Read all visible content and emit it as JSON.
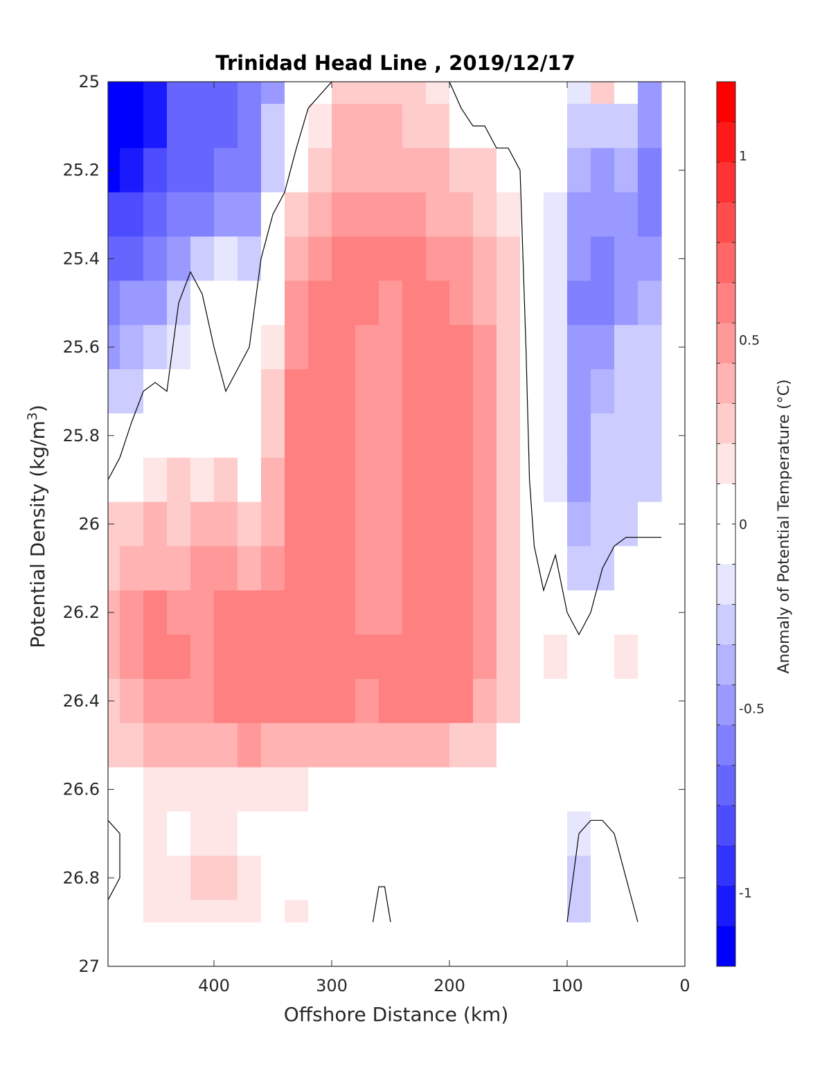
{
  "chart_data": {
    "type": "heatmap",
    "subtype": "filled-contour",
    "title": "Trinidad Head Line , 2019/12/17",
    "xlabel": "Offshore Distance (km)",
    "ylabel_main": "Potential Density (kg/m",
    "ylabel_sup": "3",
    "ylabel_close": ")",
    "colorbar_label": "Anomaly of Potential Temperature (°C)",
    "xlim": [
      490,
      0
    ],
    "x_reversed": true,
    "ylim": [
      25,
      27
    ],
    "y_reversed": true,
    "x_ticks": [
      400,
      300,
      200,
      100,
      0
    ],
    "x_tick_labels": [
      "400",
      "300",
      "200",
      "100",
      "0"
    ],
    "y_ticks": [
      25,
      25.2,
      25.4,
      25.6,
      25.8,
      26,
      26.2,
      26.4,
      26.6,
      26.8,
      27
    ],
    "y_tick_labels": [
      "25",
      "25.2",
      "25.4",
      "25.6",
      "25.8",
      "26",
      "26.2",
      "26.4",
      "26.6",
      "26.8",
      "27"
    ],
    "colorbar": {
      "range": [
        -1.2,
        1.2
      ],
      "step": 0.1,
      "ticks": [
        1,
        0.5,
        0,
        -0.5,
        -1
      ],
      "tick_labels": [
        "1",
        "0.5",
        "0",
        "-0.5",
        "-1"
      ],
      "colors_top_to_bottom": [
        "#ff0000",
        "#ff1a1a",
        "#ff3333",
        "#ff4d4d",
        "#ff6666",
        "#ff8080",
        "#ff9999",
        "#ffb3b3",
        "#ffcccc",
        "#ffe6e6",
        "#ffffff",
        "#ffffff",
        "#e6e6ff",
        "#ccccff",
        "#b3b3ff",
        "#9999ff",
        "#8080ff",
        "#6666ff",
        "#4d4dff",
        "#3333ff",
        "#1a1aff",
        "#0000ff"
      ]
    },
    "x_grid": [
      490,
      470,
      450,
      430,
      410,
      390,
      370,
      350,
      330,
      310,
      290,
      270,
      250,
      230,
      210,
      190,
      170,
      150,
      130,
      110,
      90,
      70,
      50,
      30,
      20
    ],
    "y_grid": [
      25.0,
      25.1,
      25.2,
      25.3,
      25.4,
      25.5,
      25.6,
      25.7,
      25.8,
      25.9,
      26.0,
      26.1,
      26.2,
      26.3,
      26.4,
      26.5,
      26.6,
      26.7,
      26.8,
      26.9
    ],
    "anomaly": [
      [
        -1.05,
        -1.0,
        -0.8,
        -0.6,
        -0.5,
        -0.5,
        -0.4,
        -0.3,
        0.0,
        0.15,
        0.3,
        0.35,
        0.35,
        0.3,
        0.25,
        0.15,
        0.08,
        0.05,
        0.05,
        0.0,
        -0.05,
        0.3,
        0.0,
        -0.3,
        -0.3
      ],
      [
        -1.0,
        -0.95,
        -0.8,
        -0.6,
        -0.55,
        -0.5,
        -0.45,
        -0.2,
        0.1,
        0.25,
        0.4,
        0.4,
        0.4,
        0.35,
        0.3,
        0.2,
        0.15,
        0.1,
        0.1,
        0.0,
        -0.2,
        -0.1,
        -0.1,
        -0.35,
        -0.35
      ],
      [
        -0.95,
        -0.85,
        -0.7,
        -0.55,
        -0.5,
        -0.45,
        -0.4,
        -0.1,
        0.2,
        0.35,
        0.45,
        0.45,
        0.45,
        0.45,
        0.4,
        0.35,
        0.3,
        0.2,
        0.15,
        0.0,
        -0.25,
        -0.3,
        -0.25,
        -0.4,
        -0.4
      ],
      [
        -0.7,
        -0.7,
        -0.55,
        -0.45,
        -0.4,
        -0.35,
        -0.3,
        0.0,
        0.3,
        0.45,
        0.5,
        0.55,
        0.55,
        0.5,
        0.45,
        0.4,
        0.35,
        0.25,
        0.15,
        -0.05,
        -0.3,
        -0.35,
        -0.35,
        -0.45,
        -0.45
      ],
      [
        -0.55,
        -0.5,
        -0.4,
        -0.3,
        -0.15,
        -0.05,
        -0.15,
        0.1,
        0.4,
        0.55,
        0.6,
        0.6,
        0.6,
        0.6,
        0.55,
        0.5,
        0.4,
        0.3,
        0.15,
        -0.05,
        -0.3,
        -0.4,
        -0.35,
        -0.3,
        -0.3
      ],
      [
        -0.4,
        -0.35,
        -0.3,
        -0.15,
        0.05,
        0.15,
        0.05,
        0.15,
        0.5,
        0.65,
        0.65,
        0.6,
        0.55,
        0.6,
        0.6,
        0.55,
        0.45,
        0.35,
        0.15,
        -0.05,
        -0.4,
        -0.45,
        -0.3,
        -0.25,
        -0.25
      ],
      [
        -0.3,
        -0.25,
        -0.2,
        -0.05,
        0.1,
        0.2,
        0.15,
        0.25,
        0.55,
        0.7,
        0.65,
        0.55,
        0.55,
        0.65,
        0.65,
        0.6,
        0.5,
        0.35,
        0.15,
        -0.05,
        -0.35,
        -0.35,
        -0.2,
        -0.2,
        -0.2
      ],
      [
        -0.2,
        -0.1,
        0.05,
        0.1,
        0.15,
        0.2,
        0.05,
        0.3,
        0.6,
        0.7,
        0.65,
        0.55,
        0.55,
        0.7,
        0.65,
        0.6,
        0.5,
        0.35,
        0.15,
        -0.05,
        -0.3,
        -0.25,
        -0.15,
        -0.15,
        -0.15
      ],
      [
        0.0,
        0.1,
        0.15,
        0.2,
        0.15,
        0.2,
        0.15,
        0.35,
        0.6,
        0.7,
        0.65,
        0.5,
        0.55,
        0.7,
        0.65,
        0.6,
        0.5,
        0.35,
        0.15,
        -0.05,
        -0.3,
        -0.2,
        -0.15,
        -0.15,
        -0.15
      ],
      [
        0.15,
        0.2,
        0.25,
        0.3,
        0.25,
        0.3,
        0.2,
        0.4,
        0.65,
        0.7,
        0.65,
        0.5,
        0.5,
        0.7,
        0.65,
        0.6,
        0.55,
        0.35,
        0.15,
        -0.05,
        -0.3,
        -0.2,
        -0.12,
        -0.1,
        -0.1
      ],
      [
        0.3,
        0.35,
        0.4,
        0.35,
        0.4,
        0.4,
        0.35,
        0.4,
        0.65,
        0.7,
        0.65,
        0.5,
        0.5,
        0.7,
        0.65,
        0.6,
        0.5,
        0.35,
        0.15,
        0.0,
        -0.25,
        -0.15,
        -0.1,
        0.0,
        0.0
      ],
      [
        0.35,
        0.45,
        0.45,
        0.45,
        0.5,
        0.5,
        0.45,
        0.5,
        0.65,
        0.7,
        0.6,
        0.5,
        0.5,
        0.7,
        0.65,
        0.6,
        0.5,
        0.35,
        0.05,
        0.05,
        -0.2,
        -0.1,
        0.05,
        0.15,
        0.15
      ],
      [
        0.4,
        0.55,
        0.6,
        0.55,
        0.55,
        0.6,
        0.6,
        0.6,
        0.6,
        0.65,
        0.65,
        0.55,
        0.5,
        0.7,
        0.65,
        0.6,
        0.5,
        0.35,
        0.15,
        0.1,
        0.05,
        0.15,
        0.15,
        0.15,
        0.15
      ],
      [
        0.4,
        0.55,
        0.65,
        0.6,
        0.55,
        0.6,
        0.6,
        0.6,
        0.6,
        0.65,
        0.6,
        0.6,
        0.6,
        0.7,
        0.65,
        0.6,
        0.5,
        0.35,
        0.2,
        0.25,
        0.15,
        0.2,
        0.25,
        0.15,
        0.15
      ],
      [
        0.35,
        0.45,
        0.5,
        0.55,
        0.55,
        0.6,
        0.6,
        0.6,
        0.6,
        0.6,
        0.6,
        0.55,
        0.6,
        0.65,
        0.65,
        0.6,
        0.45,
        0.3,
        0.2,
        0.2,
        0.15,
        0.2,
        0.2,
        0.15,
        0.15
      ],
      [
        0.3,
        0.35,
        0.4,
        0.45,
        0.45,
        0.45,
        0.5,
        0.45,
        0.45,
        0.45,
        0.45,
        0.4,
        0.4,
        0.45,
        0.4,
        0.35,
        0.3,
        0.2,
        0.15,
        0.15,
        0.15,
        0.15,
        0.15,
        0.15,
        0.15
      ],
      [
        0.2,
        0.2,
        0.25,
        0.25,
        0.25,
        0.25,
        0.25,
        0.25,
        0.25,
        0.2,
        0.2,
        0.2,
        0.15,
        0.15,
        0.15,
        0.1,
        0.05,
        0.05,
        0.05,
        0.05,
        0.05,
        0.05,
        0.1,
        0.1,
        0.1
      ],
      [
        0.1,
        0.15,
        0.25,
        0.2,
        0.25,
        0.25,
        0.2,
        0.15,
        0.08,
        0.2,
        0.15,
        0.15,
        0.05,
        0.05,
        0.05,
        0.05,
        0.05,
        0.05,
        0.05,
        0.0,
        -0.05,
        0.0,
        0.05,
        0.05,
        0.05
      ],
      [
        0.1,
        0.15,
        0.25,
        0.25,
        0.3,
        0.3,
        0.25,
        0.15,
        0.15,
        0.2,
        0.15,
        0.1,
        0.05,
        0.05,
        0.05,
        0.05,
        0.05,
        0.05,
        0.1,
        0.05,
        -0.15,
        0.05,
        0.05,
        0.0,
        0.0
      ],
      [
        0.1,
        0.15,
        0.25,
        0.25,
        0.25,
        0.25,
        0.25,
        0.2,
        0.25,
        0.2,
        0.2,
        0.05,
        0.05,
        0.05,
        0.05,
        0.1,
        0.05,
        0.05,
        0.15,
        0.05,
        -0.15,
        0.05,
        0.0,
        0.0,
        0.0
      ]
    ],
    "zero_contour_paths": [
      [
        [
          490,
          25.9
        ],
        [
          480,
          25.85
        ],
        [
          470,
          25.77
        ],
        [
          460,
          25.7
        ],
        [
          450,
          25.68
        ],
        [
          440,
          25.7
        ],
        [
          430,
          25.5
        ],
        [
          420,
          25.43
        ],
        [
          410,
          25.48
        ],
        [
          400,
          25.6
        ],
        [
          390,
          25.7
        ],
        [
          380,
          25.65
        ],
        [
          370,
          25.6
        ],
        [
          360,
          25.4
        ],
        [
          350,
          25.3
        ],
        [
          340,
          25.25
        ],
        [
          330,
          25.15
        ],
        [
          320,
          25.06
        ],
        [
          300,
          25.0
        ]
      ],
      [
        [
          200,
          25.0
        ],
        [
          190,
          25.06
        ],
        [
          180,
          25.1
        ],
        [
          170,
          25.1
        ],
        [
          160,
          25.15
        ],
        [
          150,
          25.15
        ],
        [
          140,
          25.2
        ],
        [
          135,
          25.6
        ],
        [
          132,
          25.9
        ],
        [
          128,
          26.05
        ],
        [
          120,
          26.15
        ],
        [
          110,
          26.07
        ],
        [
          100,
          26.2
        ],
        [
          90,
          26.25
        ],
        [
          80,
          26.2
        ],
        [
          70,
          26.1
        ],
        [
          60,
          26.05
        ],
        [
          50,
          26.03
        ],
        [
          40,
          26.03
        ],
        [
          20,
          26.03
        ]
      ],
      [
        [
          490,
          26.67
        ],
        [
          480,
          26.7
        ],
        [
          480,
          26.8
        ],
        [
          490,
          26.85
        ]
      ],
      [
        [
          100,
          26.9
        ],
        [
          95,
          26.8
        ],
        [
          90,
          26.7
        ],
        [
          80,
          26.67
        ],
        [
          70,
          26.67
        ],
        [
          60,
          26.7
        ],
        [
          50,
          26.8
        ],
        [
          40,
          26.9
        ]
      ],
      [
        [
          265,
          26.9
        ],
        [
          260,
          26.82
        ],
        [
          255,
          26.82
        ],
        [
          250,
          26.9
        ]
      ]
    ]
  }
}
